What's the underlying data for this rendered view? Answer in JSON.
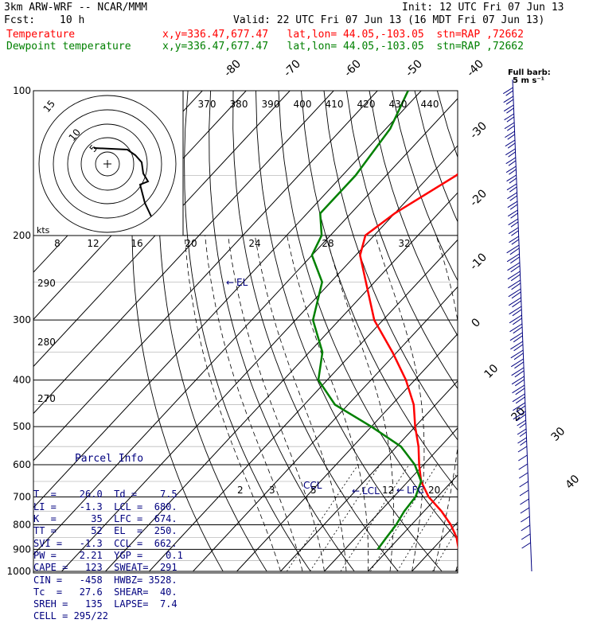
{
  "header": {
    "model": "3km ARW-WRF -- NCAR/MMM",
    "init": "Init: 12 UTC Fri 07 Jun 13",
    "fcst_label": "Fcst:",
    "fcst_value": "10 h",
    "valid": "Valid: 22 UTC Fri 07 Jun 13 (16 MDT Fri 07 Jun 13)",
    "lines": [
      {
        "name": "Temperature",
        "info": "x,y=336.47,677.47   lat,lon= 44.05,-103.05  stn=RAP ,72662",
        "color": "#ff0000"
      },
      {
        "name": "Dewpoint temperature",
        "info": "x,y=336.47,677.47   lat,lon= 44.05,-103.05  stn=RAP ,72662",
        "color": "#008000"
      }
    ]
  },
  "chart_data": {
    "type": "line",
    "chart_kind": "Skew-T log-P sounding with hodograph",
    "pressure_ticks": [
      "100",
      "200",
      "300",
      "400",
      "500",
      "600",
      "700",
      "800",
      "900",
      "1000"
    ],
    "isotherm_labels": [
      "-80",
      "-70",
      "-60",
      "-50",
      "-40",
      "-30",
      "-20",
      "-10",
      "0",
      "10",
      "20",
      "30",
      "40"
    ],
    "theta_e_labels": [
      "370",
      "380",
      "390",
      "400",
      "410",
      "420",
      "430",
      "440"
    ],
    "dry_adiabat_labels": [
      "290",
      "280",
      "270"
    ],
    "mixing_ratio_labels": [
      "2",
      "3",
      "5",
      "12",
      "20"
    ],
    "hodograph": {
      "speed_unit": "kts",
      "ring_labels": [
        "5",
        "10",
        "15"
      ],
      "scale_labels": [
        "8",
        "12",
        "16",
        "20",
        "24",
        "28",
        "32"
      ]
    },
    "wind_legend": {
      "line1": "Full barb:",
      "line2": "5 m s⁻¹"
    },
    "annotations": {
      "el": "EL",
      "ccl": "CCL",
      "lcl": "LCL",
      "lfc": "LFC"
    },
    "series": [
      {
        "name": "Temperature",
        "color": "#ff0000",
        "points": [
          [
            100,
            -47
          ],
          [
            120,
            -50
          ],
          [
            150,
            -54
          ],
          [
            180,
            -60
          ],
          [
            200,
            -62
          ],
          [
            220,
            -59
          ],
          [
            250,
            -52
          ],
          [
            300,
            -42
          ],
          [
            350,
            -31
          ],
          [
            400,
            -22
          ],
          [
            450,
            -15
          ],
          [
            500,
            -10
          ],
          [
            550,
            -5
          ],
          [
            600,
            -1
          ],
          [
            650,
            3
          ],
          [
            700,
            8
          ],
          [
            750,
            14
          ],
          [
            800,
            19
          ],
          [
            850,
            23
          ],
          [
            900,
            26
          ]
        ]
      },
      {
        "name": "Dewpoint temperature",
        "color": "#008000",
        "points": [
          [
            100,
            -83
          ],
          [
            120,
            -79
          ],
          [
            150,
            -77
          ],
          [
            180,
            -77
          ],
          [
            200,
            -72
          ],
          [
            220,
            -70
          ],
          [
            250,
            -62
          ],
          [
            300,
            -56
          ],
          [
            350,
            -47
          ],
          [
            400,
            -42
          ],
          [
            450,
            -33
          ],
          [
            500,
            -20
          ],
          [
            550,
            -9
          ],
          [
            600,
            -2
          ],
          [
            650,
            3
          ],
          [
            700,
            5
          ],
          [
            750,
            5.5
          ],
          [
            800,
            6.5
          ],
          [
            850,
            7
          ],
          [
            900,
            7.5
          ]
        ]
      }
    ]
  },
  "parcel_info": {
    "title": "Parcel Info",
    "rows": [
      "T  =    26.0  Td =    7.5",
      "LI =    -1.3  LCL =  680.",
      "K  =      35  LFC =  674.",
      "TT =      52  EL  =  250.",
      "SVI =   -1.3  CCL =  662.",
      "PW =    2.21  YGP =    0.1",
      "CAPE =   123  SWEAT=  291",
      "CIN =   -458  HWBZ= 3528.",
      "Tc  =   27.6  SHEAR=  40.",
      "SREH =   135  LAPSE=  7.4",
      "CELL = 295/22"
    ]
  },
  "colors": {
    "temperature": "#ff0000",
    "dewpoint": "#008000",
    "isotherm": "#000000",
    "winds": "#00007f",
    "grid": "#000000"
  }
}
